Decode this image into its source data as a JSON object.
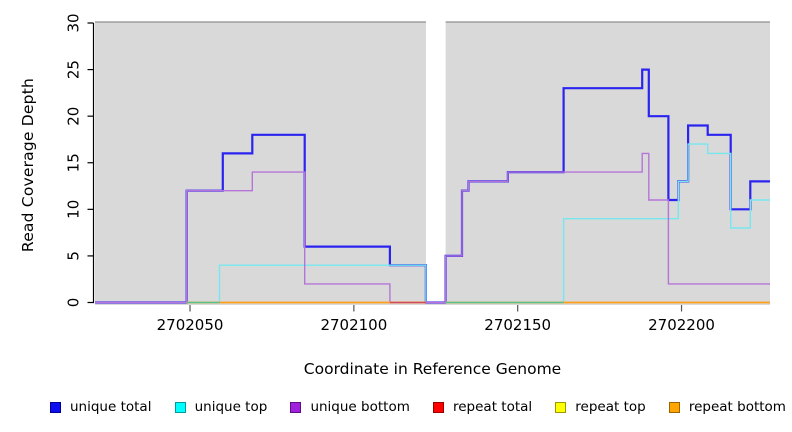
{
  "chart_data": {
    "type": "step-line",
    "title": "",
    "xlabel": "Coordinate in Reference Genome",
    "ylabel": "Read Coverage Depth",
    "xlim": [
      2702021,
      2702227
    ],
    "ylim": [
      0,
      30
    ],
    "x_ticks": [
      2702050,
      2702100,
      2702150,
      2702200
    ],
    "y_ticks": [
      0,
      5,
      10,
      15,
      20,
      25,
      30
    ],
    "grid": false,
    "legend_position": "bottom",
    "plot_bg": "#d9d9d9",
    "top_border_color": "#909090",
    "axis_color": "#000000",
    "gap_band": {
      "x1": 2702122,
      "x2": 2702128,
      "color": "#ffffff"
    },
    "series": [
      {
        "name": "unique total",
        "color": "#2b24f0",
        "width": 2.2,
        "runs": [
          [
            [
              2702021,
              0
            ],
            [
              2702049,
              12
            ],
            [
              2702060,
              16
            ],
            [
              2702069,
              18
            ],
            [
              2702085,
              6
            ],
            [
              2702111,
              4
            ],
            [
              2702122,
              0
            ],
            [
              2702128,
              5
            ],
            [
              2702133,
              12
            ],
            [
              2702135,
              13
            ],
            [
              2702147,
              14
            ],
            [
              2702164,
              23
            ],
            [
              2702188,
              25
            ],
            [
              2702190,
              20
            ],
            [
              2702196,
              11
            ],
            [
              2702199,
              13
            ],
            [
              2702202,
              19
            ],
            [
              2702208,
              18
            ],
            [
              2702215,
              10
            ],
            [
              2702221,
              13
            ],
            [
              2702227,
              13
            ]
          ]
        ]
      },
      {
        "name": "unique top",
        "color": "#76e7ed",
        "width": 1.4,
        "runs": [
          [
            [
              2702049,
              0
            ],
            [
              2702059,
              4
            ],
            [
              2702122,
              0
            ]
          ],
          [
            [
              2702128,
              0
            ],
            [
              2702164,
              9
            ],
            [
              2702199,
              13
            ],
            [
              2702202,
              17
            ],
            [
              2702208,
              16
            ],
            [
              2702215,
              8
            ],
            [
              2702221,
              11
            ],
            [
              2702227,
              11
            ]
          ]
        ]
      },
      {
        "name": "unique bottom",
        "color": "#b575d8",
        "width": 1.4,
        "runs": [
          [
            [
              2702021,
              0
            ],
            [
              2702049,
              12
            ],
            [
              2702069,
              14
            ],
            [
              2702085,
              2
            ],
            [
              2702111,
              0
            ],
            [
              2702128,
              5
            ],
            [
              2702133,
              12
            ],
            [
              2702135,
              13
            ],
            [
              2702147,
              14
            ],
            [
              2702188,
              16
            ],
            [
              2702190,
              11
            ],
            [
              2702196,
              2
            ],
            [
              2702227,
              2
            ]
          ]
        ]
      },
      {
        "name": "repeat total",
        "color": "#e03a3a",
        "width": 1.4,
        "runs": [
          [
            [
              2702049,
              0
            ],
            [
              2702122,
              0
            ]
          ],
          [
            [
              2702128,
              0
            ],
            [
              2702227,
              0
            ]
          ]
        ]
      },
      {
        "name": "repeat top",
        "color": "#f5f14c",
        "width": 1.4,
        "runs": [
          [
            [
              2702049,
              0
            ],
            [
              2702122,
              0
            ]
          ],
          [
            [
              2702128,
              0
            ],
            [
              2702227,
              0
            ]
          ]
        ]
      },
      {
        "name": "repeat bottom",
        "color": "#ff9e1f",
        "width": 1.5,
        "runs": [
          [
            [
              2702049,
              0
            ],
            [
              2702122,
              0
            ]
          ],
          [
            [
              2702128,
              0
            ],
            [
              2702227,
              0
            ]
          ]
        ]
      }
    ],
    "zero_overlap_tints": [
      {
        "x1": 2702049,
        "x2": 2702059,
        "color": "#57c28e"
      },
      {
        "x1": 2702111,
        "x2": 2702122,
        "color": "#d14a5e"
      },
      {
        "x1": 2702128,
        "x2": 2702164,
        "color": "#57c28e"
      }
    ],
    "legend": [
      {
        "label": "unique total",
        "fill": "#0d0df0",
        "border": "#000090"
      },
      {
        "label": "unique top",
        "fill": "#00ffff",
        "border": "#009a9a"
      },
      {
        "label": "unique bottom",
        "fill": "#a021dd",
        "border": "#5f0d87"
      },
      {
        "label": "repeat total",
        "fill": "#ff0000",
        "border": "#990000"
      },
      {
        "label": "repeat top",
        "fill": "#ffff00",
        "border": "#9a9a00"
      },
      {
        "label": "repeat bottom",
        "fill": "#ffa500",
        "border": "#9a6400"
      }
    ]
  }
}
